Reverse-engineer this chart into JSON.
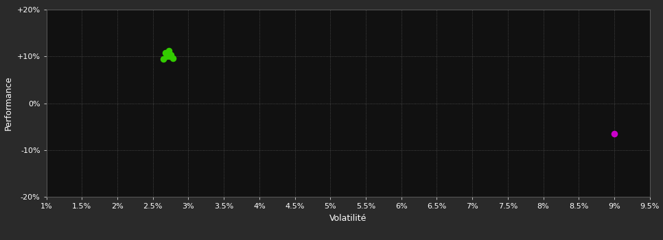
{
  "background_color": "#2a2a2a",
  "plot_bg_color": "#111111",
  "grid_color": "#555555",
  "grid_style": ":",
  "xlabel": "Volatilité",
  "ylabel": "Performance",
  "xlim": [
    0.01,
    0.095
  ],
  "ylim": [
    -0.2,
    0.2
  ],
  "xticks": [
    0.01,
    0.015,
    0.02,
    0.025,
    0.03,
    0.035,
    0.04,
    0.045,
    0.05,
    0.055,
    0.06,
    0.065,
    0.07,
    0.075,
    0.08,
    0.085,
    0.09,
    0.095
  ],
  "yticks": [
    -0.2,
    -0.1,
    0.0,
    0.1,
    0.2
  ],
  "green_points_x": [
    0.0272,
    0.0268,
    0.0275,
    0.027,
    0.0278,
    0.0265,
    0.0273,
    0.0271
  ],
  "green_points_y": [
    0.112,
    0.108,
    0.104,
    0.1,
    0.096,
    0.095,
    0.101,
    0.107
  ],
  "green_color": "#33cc00",
  "magenta_points_x": [
    0.09
  ],
  "magenta_points_y": [
    -0.065
  ],
  "magenta_color": "#cc00cc",
  "point_size": 35,
  "text_color": "#ffffff",
  "tick_color": "#ffffff",
  "axis_color": "#555555",
  "tick_fontsize": 8,
  "label_fontsize": 9
}
